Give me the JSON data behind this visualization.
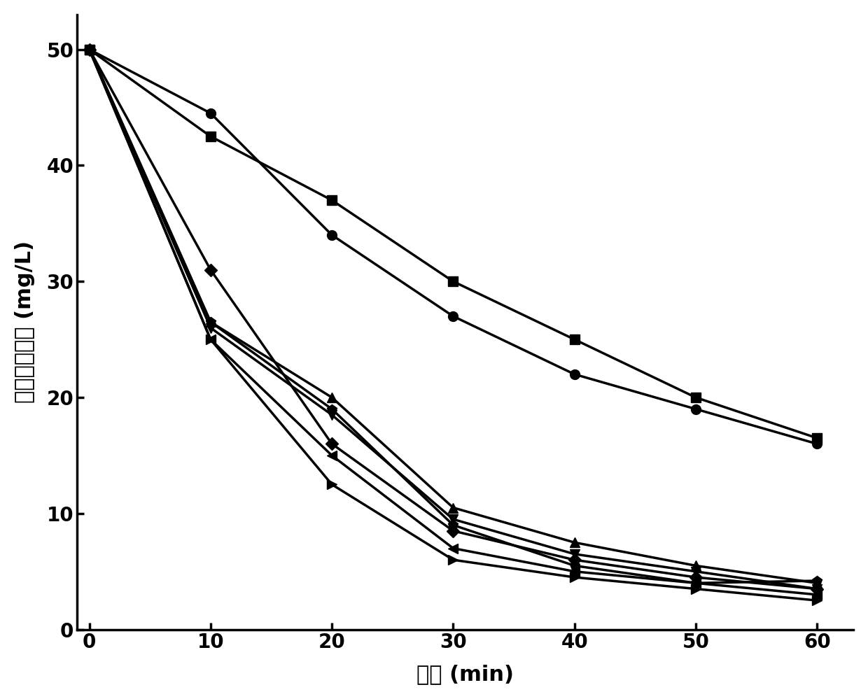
{
  "xlabel": "时间 (min)",
  "ylabel": "三价锐的浓度 (mg/L)",
  "xlim": [
    -1,
    63
  ],
  "ylim": [
    0,
    53
  ],
  "xticks": [
    0,
    10,
    20,
    30,
    40,
    50,
    60
  ],
  "yticks": [
    0,
    10,
    20,
    30,
    40,
    50
  ],
  "background_color": "#ffffff",
  "series": [
    {
      "x": [
        0,
        10,
        20,
        30,
        40,
        50,
        60
      ],
      "y": [
        50,
        44.5,
        34,
        27,
        22,
        19,
        16
      ],
      "marker": "o",
      "markersize": 10,
      "linewidth": 2.5,
      "color": "#000000"
    },
    {
      "x": [
        0,
        10,
        20,
        30,
        40,
        50,
        60
      ],
      "y": [
        50,
        42.5,
        37,
        30,
        25,
        20,
        16.5
      ],
      "marker": "s",
      "markersize": 10,
      "linewidth": 2.5,
      "color": "#000000"
    },
    {
      "x": [
        0,
        10,
        20,
        30,
        40,
        50,
        60
      ],
      "y": [
        50,
        26.5,
        20,
        10.5,
        7.5,
        5.5,
        4.0
      ],
      "marker": "^",
      "markersize": 10,
      "linewidth": 2.5,
      "color": "#000000"
    },
    {
      "x": [
        0,
        10,
        20,
        30,
        40,
        50,
        60
      ],
      "y": [
        50,
        26,
        18.5,
        9.5,
        6.5,
        5.0,
        3.5
      ],
      "marker": "v",
      "markersize": 10,
      "linewidth": 2.5,
      "color": "#000000"
    },
    {
      "x": [
        0,
        10,
        20,
        30,
        40,
        50,
        60
      ],
      "y": [
        50,
        31,
        16,
        8.5,
        6.0,
        4.5,
        3.5
      ],
      "marker": "D",
      "markersize": 9,
      "linewidth": 2.5,
      "color": "#000000"
    },
    {
      "x": [
        0,
        10,
        20,
        30,
        40,
        50,
        60
      ],
      "y": [
        50,
        25,
        15,
        7.0,
        5.0,
        4.0,
        3.0
      ],
      "marker": "<",
      "markersize": 10,
      "linewidth": 2.5,
      "color": "#000000"
    },
    {
      "x": [
        0,
        10,
        20,
        30,
        40,
        50,
        60
      ],
      "y": [
        50,
        25,
        12.5,
        6.0,
        4.5,
        3.5,
        2.5
      ],
      "marker": ">",
      "markersize": 10,
      "linewidth": 2.5,
      "color": "#000000"
    },
    {
      "x": [
        0,
        10,
        20,
        30,
        40,
        50,
        60
      ],
      "y": [
        50,
        26.5,
        19,
        9.0,
        5.5,
        4.0,
        4.2
      ],
      "marker": "p",
      "markersize": 10,
      "linewidth": 2.5,
      "color": "#000000"
    }
  ]
}
